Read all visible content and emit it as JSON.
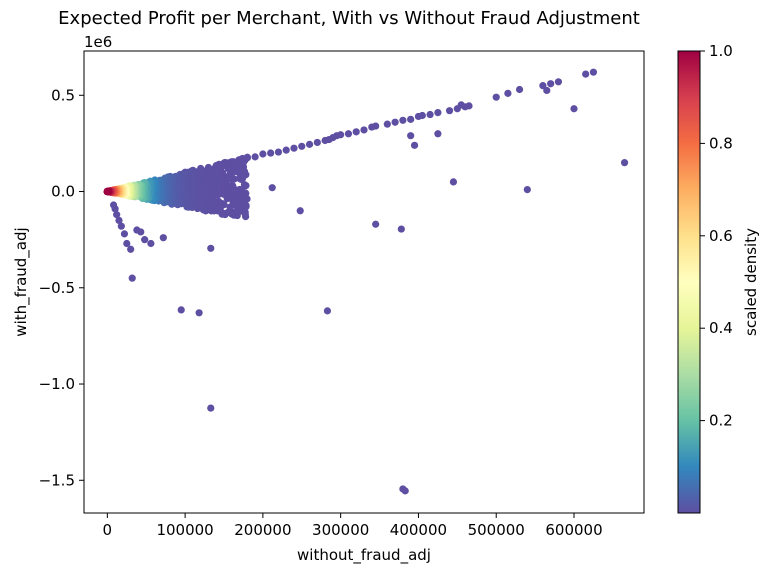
{
  "chart_data": {
    "type": "scatter",
    "title": "Expected Profit per Merchant, With vs Without Fraud Adjustment",
    "xlabel": "without_fraud_adj",
    "ylabel": "with_fraud_adj",
    "y_offset_label": "1e6",
    "xlim": [
      -30000,
      690000
    ],
    "ylim": [
      -1670000,
      730000
    ],
    "x_ticks": [
      0,
      100000,
      200000,
      300000,
      400000,
      500000,
      600000
    ],
    "x_tick_labels": [
      "0",
      "100000",
      "200000",
      "300000",
      "400000",
      "500000",
      "600000"
    ],
    "y_ticks": [
      -1500000,
      -1000000,
      -500000,
      0,
      500000
    ],
    "y_tick_labels": [
      "−1.5",
      "−1.0",
      "−0.5",
      "0.0",
      "0.5"
    ],
    "grid": false,
    "colormap": "Spectral_r",
    "colorbar": {
      "label": "scaled density",
      "range": [
        0.0,
        1.0
      ],
      "ticks": [
        0.2,
        0.4,
        0.6,
        0.8,
        1.0
      ],
      "tick_labels": [
        "0.2",
        "0.4",
        "0.6",
        "0.8",
        "1.0"
      ],
      "colors": [
        "#5e4fa2",
        "#3288bd",
        "#66c2a5",
        "#abdda4",
        "#e6f598",
        "#ffffbf",
        "#fee08b",
        "#fdae61",
        "#f46d43",
        "#d53e4f",
        "#9e0142"
      ]
    },
    "outliers": {
      "x": [
        665000,
        600000,
        540000,
        445000,
        425000,
        395000,
        390000,
        378000,
        383000,
        380000,
        345000,
        283000,
        248000,
        212000,
        178000,
        160000,
        133000,
        133000,
        118000,
        95000,
        72000,
        56000,
        48000,
        43000,
        38000,
        32000,
        30000,
        25000,
        22000,
        18000,
        15000,
        12000,
        10000,
        8000
      ],
      "y": [
        150000,
        430000,
        10000,
        50000,
        300000,
        240000,
        290000,
        -195000,
        -1555000,
        -1545000,
        -170000,
        -620000,
        -100000,
        20000,
        -10000,
        30000,
        -1125000,
        -295000,
        -630000,
        -615000,
        -240000,
        -270000,
        -250000,
        -210000,
        -200000,
        -450000,
        -300000,
        -270000,
        -220000,
        -180000,
        -150000,
        -120000,
        -90000,
        -70000
      ]
    },
    "upper_band": {
      "x": [
        625000,
        615000,
        580000,
        570000,
        565000,
        560000,
        530000,
        515000,
        500000,
        465000,
        460000,
        455000,
        450000,
        440000,
        425000,
        415000,
        405000,
        400000,
        390000,
        380000,
        370000,
        360000,
        345000,
        340000,
        330000,
        320000,
        310000,
        300000,
        295000,
        290000,
        285000,
        280000,
        270000,
        260000,
        250000,
        240000,
        230000,
        220000,
        210000,
        200000,
        190000,
        180000,
        170000,
        160000,
        150000,
        140000,
        130000,
        120000,
        110000,
        100000
      ],
      "y": [
        620000,
        610000,
        570000,
        560000,
        525000,
        550000,
        530000,
        510000,
        490000,
        445000,
        440000,
        450000,
        430000,
        420000,
        410000,
        400000,
        395000,
        390000,
        375000,
        370000,
        360000,
        350000,
        340000,
        335000,
        320000,
        310000,
        300000,
        295000,
        290000,
        280000,
        270000,
        265000,
        255000,
        245000,
        235000,
        225000,
        215000,
        205000,
        200000,
        195000,
        180000,
        175000,
        165000,
        155000,
        145000,
        135000,
        125000,
        120000,
        110000,
        100000
      ]
    },
    "dense_core": {
      "x_range": [
        0,
        180000
      ],
      "y_band": [
        -0.8,
        1.0
      ],
      "density_peak_x": 8000
    }
  }
}
